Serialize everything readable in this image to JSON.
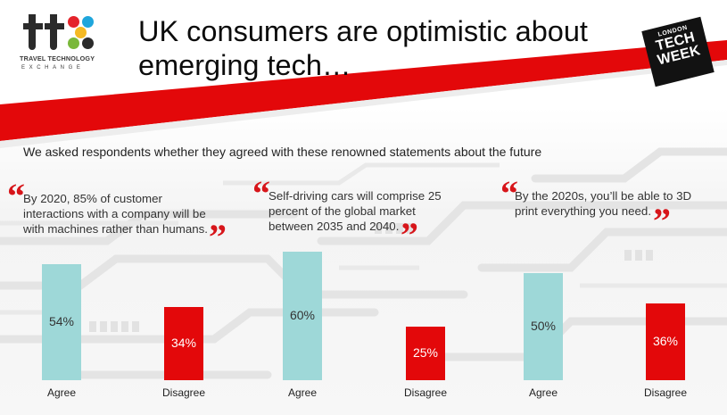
{
  "header": {
    "title_line1": "UK consumers are optimistic about",
    "title_line2": "emerging tech…",
    "logo": {
      "letters": [
        "T",
        "T",
        "X"
      ],
      "tagline": "TRAVEL TECHNOLOGY",
      "subtagline": "EXCHANGE",
      "colors": [
        "#e4242b",
        "#1fa6dc",
        "#f5b922",
        "#7ab83a",
        "#2b2b2b"
      ]
    },
    "badge": {
      "top": "LONDON",
      "line1": "TECH",
      "line2": "WEEK"
    }
  },
  "intro": "We asked respondents whether they agreed with these renowned statements about the future",
  "colors": {
    "agree": "#9ed8d8",
    "disagree": "#e3080a",
    "accent_red": "#d7151a"
  },
  "quotes": [
    "By 2020, 85% of customer interactions with a company will be with machines rather than humans.",
    "Self-driving cars will comprise 25 percent of the global market between 2035 and 2040.",
    "By the 2020s, you’ll be able to 3D print everything you need."
  ],
  "chart_data": [
    {
      "type": "bar",
      "categories": [
        "Agree",
        "Disagree"
      ],
      "values": [
        54,
        34
      ],
      "labels": [
        "54%",
        "34%"
      ],
      "title": "",
      "ylim": [
        0,
        75
      ]
    },
    {
      "type": "bar",
      "categories": [
        "Agree",
        "Disagree"
      ],
      "values": [
        60,
        25
      ],
      "labels": [
        "60%",
        "25%"
      ],
      "title": "",
      "ylim": [
        0,
        75
      ]
    },
    {
      "type": "bar",
      "categories": [
        "Agree",
        "Disagree"
      ],
      "values": [
        50,
        36
      ],
      "labels": [
        "50%",
        "36%"
      ],
      "title": "",
      "ylim": [
        0,
        75
      ]
    }
  ]
}
